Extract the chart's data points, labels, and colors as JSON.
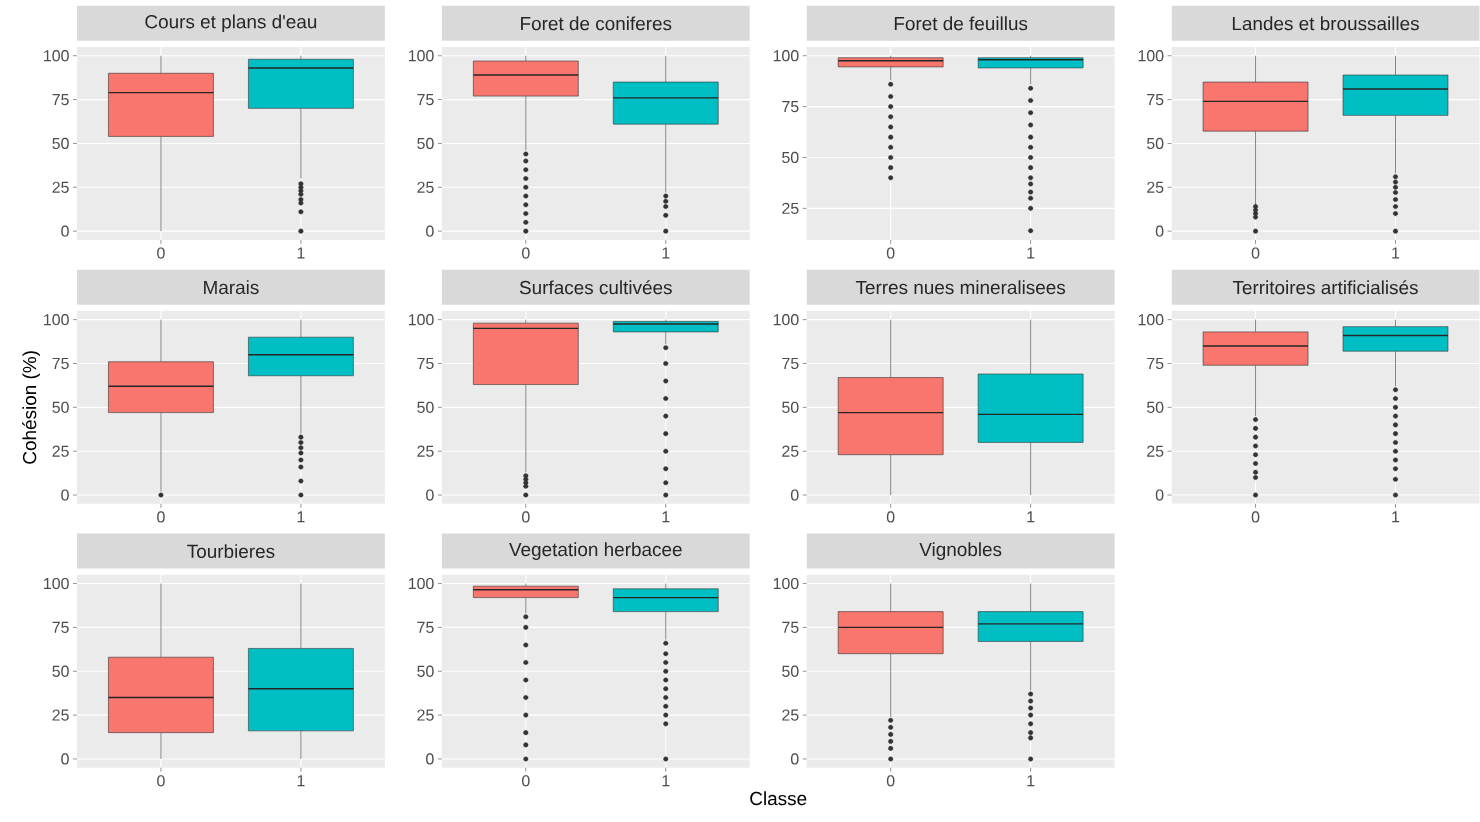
{
  "chart_data": [
    {
      "type": "box",
      "title": "Cours et plans d'eau",
      "categories": [
        "0",
        "1"
      ],
      "colors": [
        "#f8766d",
        "#00bfc4"
      ],
      "ylim": [
        -5,
        105
      ],
      "yticks": [
        0,
        25,
        50,
        75,
        100
      ],
      "grid": true,
      "boxes": [
        {
          "low": 0,
          "q1": 54,
          "median": 79,
          "q3": 90,
          "high": 100
        },
        {
          "low": 30,
          "q1": 70,
          "median": 93,
          "q3": 98,
          "high": 100,
          "outliers": [
            27,
            25,
            23,
            21,
            18,
            16,
            11,
            0
          ]
        }
      ]
    },
    {
      "type": "box",
      "title": "Foret de coniferes",
      "categories": [
        "0",
        "1"
      ],
      "colors": [
        "#f8766d",
        "#00bfc4"
      ],
      "ylim": [
        -5,
        105
      ],
      "yticks": [
        0,
        25,
        50,
        75,
        100
      ],
      "grid": true,
      "boxes": [
        {
          "low": 46,
          "q1": 77,
          "median": 89,
          "q3": 97,
          "high": 100,
          "outliers": [
            44,
            40,
            35,
            30,
            25,
            20,
            15,
            10,
            5,
            0
          ]
        },
        {
          "low": 22,
          "q1": 61,
          "median": 76,
          "q3": 85,
          "high": 100,
          "outliers": [
            20,
            17,
            14,
            9,
            0
          ]
        }
      ]
    },
    {
      "type": "box",
      "title": "Foret de feuillus",
      "categories": [
        "0",
        "1"
      ],
      "colors": [
        "#f8766d",
        "#00bfc4"
      ],
      "ylim": [
        9.5,
        104.3
      ],
      "yticks": [
        25,
        50,
        75,
        100
      ],
      "grid": true,
      "boxes": [
        {
          "low": 88,
          "q1": 94.5,
          "median": 97.5,
          "q3": 99,
          "high": 100,
          "outliers": [
            86,
            80,
            75,
            70,
            65,
            60,
            55,
            50,
            45,
            40
          ]
        },
        {
          "low": 86,
          "q1": 94,
          "median": 98,
          "q3": 99,
          "high": 100,
          "outliers": [
            84,
            78,
            72,
            66,
            60,
            55,
            50,
            45,
            40,
            37,
            33,
            30,
            25,
            14
          ]
        }
      ]
    },
    {
      "type": "box",
      "title": "Landes et broussailles",
      "categories": [
        "0",
        "1"
      ],
      "colors": [
        "#f8766d",
        "#00bfc4"
      ],
      "ylim": [
        -5,
        105
      ],
      "yticks": [
        0,
        25,
        50,
        75,
        100
      ],
      "grid": true,
      "boxes": [
        {
          "low": 15,
          "q1": 57,
          "median": 74,
          "q3": 85,
          "high": 100,
          "outliers": [
            14,
            12,
            10,
            8,
            0
          ]
        },
        {
          "low": 33,
          "q1": 66,
          "median": 81,
          "q3": 89,
          "high": 100,
          "outliers": [
            31,
            28,
            25,
            22,
            18,
            14,
            10,
            0
          ]
        }
      ]
    },
    {
      "type": "box",
      "title": "Marais",
      "ylabel": "Cohésion (%)",
      "categories": [
        "0",
        "1"
      ],
      "colors": [
        "#f8766d",
        "#00bfc4"
      ],
      "ylim": [
        -5,
        105
      ],
      "yticks": [
        0,
        25,
        50,
        75,
        100
      ],
      "grid": true,
      "boxes": [
        {
          "low": 2,
          "q1": 47,
          "median": 62,
          "q3": 76,
          "high": 100,
          "outliers": [
            0
          ]
        },
        {
          "low": 35,
          "q1": 68,
          "median": 80,
          "q3": 90,
          "high": 100,
          "outliers": [
            33,
            30,
            27,
            24,
            20,
            16,
            8,
            0
          ]
        }
      ]
    },
    {
      "type": "box",
      "title": "Surfaces cultivées",
      "categories": [
        "0",
        "1"
      ],
      "colors": [
        "#f8766d",
        "#00bfc4"
      ],
      "ylim": [
        -5,
        105
      ],
      "yticks": [
        0,
        25,
        50,
        75,
        100
      ],
      "grid": true,
      "boxes": [
        {
          "low": 13,
          "q1": 63,
          "median": 95,
          "q3": 98,
          "high": 100,
          "outliers": [
            11,
            9,
            7,
            5,
            0
          ]
        },
        {
          "low": 86,
          "q1": 93,
          "median": 97.5,
          "q3": 99,
          "high": 100,
          "outliers": [
            84,
            75,
            65,
            55,
            45,
            35,
            25,
            15,
            7,
            0
          ]
        }
      ]
    },
    {
      "type": "box",
      "title": "Terres nues mineralisees",
      "categories": [
        "0",
        "1"
      ],
      "colors": [
        "#f8766d",
        "#00bfc4"
      ],
      "ylim": [
        -5,
        105
      ],
      "yticks": [
        0,
        25,
        50,
        75,
        100
      ],
      "grid": true,
      "boxes": [
        {
          "low": 0,
          "q1": 23,
          "median": 47,
          "q3": 67,
          "high": 100
        },
        {
          "low": 0,
          "q1": 30,
          "median": 46,
          "q3": 69,
          "high": 100
        }
      ]
    },
    {
      "type": "box",
      "title": "Territoires artificialisés",
      "categories": [
        "0",
        "1"
      ],
      "colors": [
        "#f8766d",
        "#00bfc4"
      ],
      "ylim": [
        -5,
        105
      ],
      "yticks": [
        0,
        25,
        50,
        75,
        100
      ],
      "grid": true,
      "boxes": [
        {
          "low": 45,
          "q1": 74,
          "median": 85,
          "q3": 93,
          "high": 100,
          "outliers": [
            43,
            38,
            33,
            28,
            23,
            18,
            13,
            10,
            0
          ]
        },
        {
          "low": 62,
          "q1": 82,
          "median": 91,
          "q3": 96,
          "high": 100,
          "outliers": [
            60,
            55,
            50,
            45,
            40,
            35,
            30,
            25,
            20,
            15,
            9,
            0
          ]
        }
      ]
    },
    {
      "type": "box",
      "title": "Tourbieres",
      "categories": [
        "0",
        "1"
      ],
      "colors": [
        "#f8766d",
        "#00bfc4"
      ],
      "ylim": [
        -5,
        105
      ],
      "yticks": [
        0,
        25,
        50,
        75,
        100
      ],
      "grid": true,
      "boxes": [
        {
          "low": 0,
          "q1": 15,
          "median": 35,
          "q3": 58,
          "high": 100
        },
        {
          "low": 0,
          "q1": 16,
          "median": 40,
          "q3": 63,
          "high": 100
        }
      ]
    },
    {
      "type": "box",
      "title": "Vegetation herbacee",
      "xlabel": "Classe",
      "categories": [
        "0",
        "1"
      ],
      "colors": [
        "#f8766d",
        "#00bfc4"
      ],
      "ylim": [
        -5,
        105
      ],
      "yticks": [
        0,
        25,
        50,
        75,
        100
      ],
      "grid": true,
      "boxes": [
        {
          "low": 83,
          "q1": 92,
          "median": 96.5,
          "q3": 98.5,
          "high": 100,
          "outliers": [
            81,
            75,
            65,
            55,
            45,
            35,
            25,
            15,
            8,
            0
          ]
        },
        {
          "low": 68,
          "q1": 84,
          "median": 92,
          "q3": 97,
          "high": 100,
          "outliers": [
            66,
            60,
            55,
            50,
            45,
            40,
            35,
            30,
            25,
            20,
            0
          ]
        }
      ]
    },
    {
      "type": "box",
      "title": "Vignobles",
      "categories": [
        "0",
        "1"
      ],
      "colors": [
        "#f8766d",
        "#00bfc4"
      ],
      "ylim": [
        -5,
        105
      ],
      "yticks": [
        0,
        25,
        50,
        75,
        100
      ],
      "grid": true,
      "boxes": [
        {
          "low": 24,
          "q1": 60,
          "median": 75,
          "q3": 84,
          "high": 100,
          "outliers": [
            22,
            18,
            14,
            10,
            6,
            0
          ]
        },
        {
          "low": 39,
          "q1": 67,
          "median": 77,
          "q3": 84,
          "high": 100,
          "outliers": [
            37,
            33,
            29,
            25,
            20,
            15,
            12,
            0
          ]
        }
      ]
    }
  ]
}
